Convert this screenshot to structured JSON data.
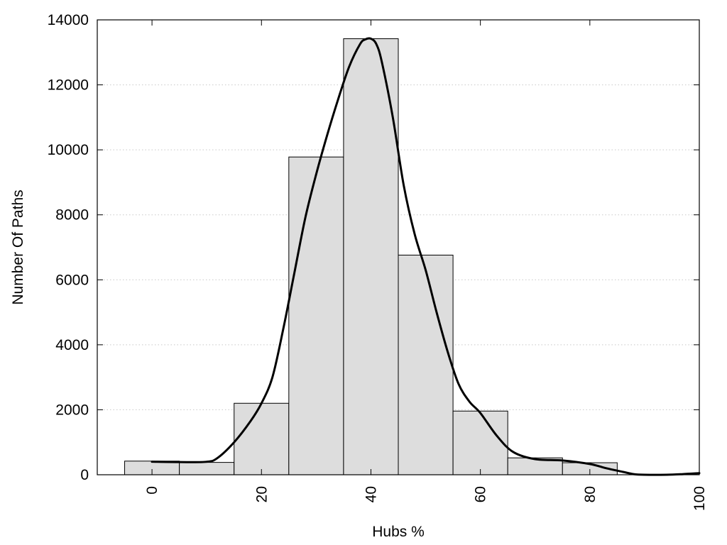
{
  "chart_data": {
    "type": "bar",
    "title": "",
    "xlabel": "Hubs %",
    "ylabel": "Number Of Paths",
    "xlim": [
      -10,
      100
    ],
    "ylim": [
      0,
      14000
    ],
    "grid": true,
    "x_ticks": [
      0,
      20,
      40,
      60,
      80,
      100
    ],
    "y_ticks": [
      0,
      2000,
      4000,
      6000,
      8000,
      10000,
      12000,
      14000
    ],
    "bin_width": 10,
    "bins": [
      {
        "center": 0,
        "value": 420
      },
      {
        "center": 10,
        "value": 380
      },
      {
        "center": 20,
        "value": 2200
      },
      {
        "center": 30,
        "value": 9780
      },
      {
        "center": 40,
        "value": 13420
      },
      {
        "center": 50,
        "value": 6760
      },
      {
        "center": 60,
        "value": 1960
      },
      {
        "center": 70,
        "value": 520
      },
      {
        "center": 80,
        "value": 370
      },
      {
        "center": 90,
        "value": 0
      }
    ],
    "curve": {
      "x": [
        0,
        5,
        10,
        12,
        15,
        18,
        20,
        22,
        24,
        26,
        28,
        30,
        32,
        34,
        36,
        38,
        39,
        40,
        41,
        42,
        44,
        46,
        48,
        50,
        52,
        54,
        56,
        58,
        60,
        63,
        66,
        70,
        75,
        80,
        83,
        86,
        88,
        90,
        94,
        97,
        100
      ],
      "y": [
        400,
        390,
        400,
        520,
        1000,
        1650,
        2200,
        3000,
        4500,
        6200,
        7900,
        9250,
        10450,
        11550,
        12550,
        13250,
        13400,
        13420,
        13250,
        12700,
        11000,
        8900,
        7400,
        6300,
        5000,
        3800,
        2800,
        2250,
        1900,
        1200,
        700,
        480,
        440,
        330,
        200,
        90,
        20,
        0,
        0,
        20,
        50
      ]
    },
    "colors": {
      "bar_fill": "#dddddd",
      "bar_stroke": "#000000",
      "curve": "#000000",
      "grid": "#c8c8c8"
    }
  }
}
